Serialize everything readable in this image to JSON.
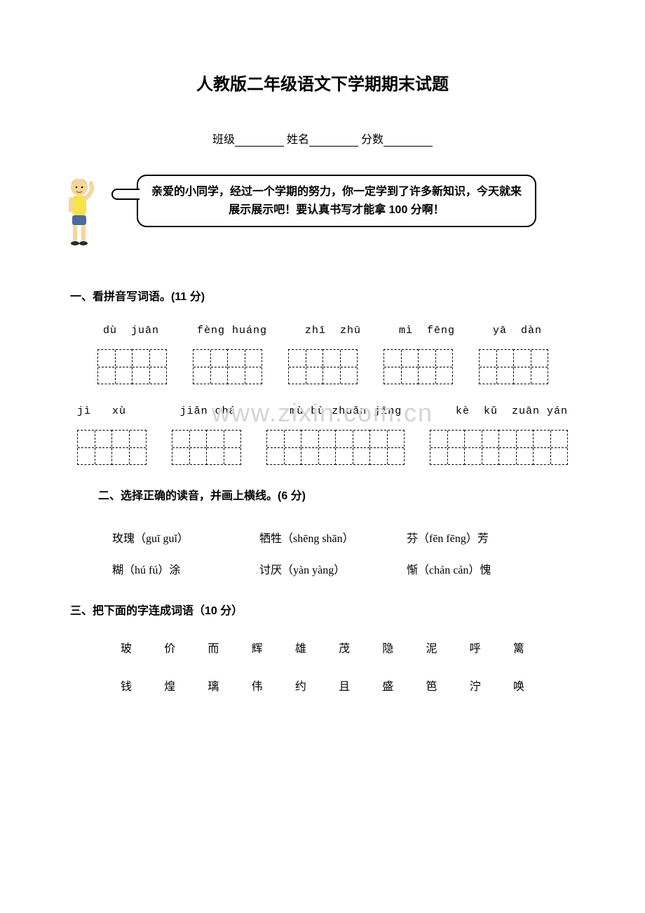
{
  "title": "人教版二年级语文下学期期末试题",
  "info": {
    "class_label": "班级",
    "name_label": "姓名",
    "score_label": "分数"
  },
  "speech": "亲爱的小同学，经过一个学期的努力，你一定学到了许多新知识，今天就来展示展示吧！要认真书写才能拿 100 分啊！",
  "watermark": "www.zixin.com.cn",
  "q1": {
    "heading": "一、看拼音写词语。(11 分)",
    "row1": {
      "items": [
        {
          "pinyin": "dù  juān",
          "cells": 2
        },
        {
          "pinyin": "fèng huáng",
          "cells": 2
        },
        {
          "pinyin": "zhī  zhū",
          "cells": 2
        },
        {
          "pinyin": "mì  fēng",
          "cells": 2
        },
        {
          "pinyin": "yā  dàn",
          "cells": 2
        }
      ]
    },
    "row2": {
      "items": [
        {
          "pinyin": "jì   xù",
          "cells": 2
        },
        {
          "pinyin": "jiǎn chá",
          "cells": 2
        },
        {
          "pinyin": "mù bù zhuǎn jīng",
          "cells": 4
        },
        {
          "pinyin": "kè  kǔ  zuān yán",
          "cells": 4
        }
      ]
    }
  },
  "q2": {
    "heading": "二、选择正确的读音，并画上横线。(6 分)",
    "lines": [
      [
        "玫瑰（guī guǐ）",
        "牺牲（shēng shān）",
        "芬（fēn fēng）芳"
      ],
      [
        "糊（hú fú）涂",
        "讨厌（yàn yàng）",
        "惭（chán cán）愧"
      ]
    ]
  },
  "q3": {
    "heading": "三、把下面的字连成词语（10 分）",
    "row1": [
      "玻",
      "价",
      "而",
      "辉",
      "雄",
      "茂",
      "隐",
      "泥",
      "呼",
      "篱"
    ],
    "row2": [
      "钱",
      "煌",
      "璃",
      "伟",
      "约",
      "且",
      "盛",
      "笆",
      "泞",
      "唤"
    ]
  },
  "colors": {
    "text": "#000000",
    "bg": "#ffffff",
    "watermark": "#d4d4d4"
  },
  "mascot": {
    "skin": "#f7d59a",
    "hair": "#3a2a1a",
    "shirt": "#f6e34a",
    "shorts": "#4b6aa0",
    "shoes": "#2b2b2b"
  }
}
